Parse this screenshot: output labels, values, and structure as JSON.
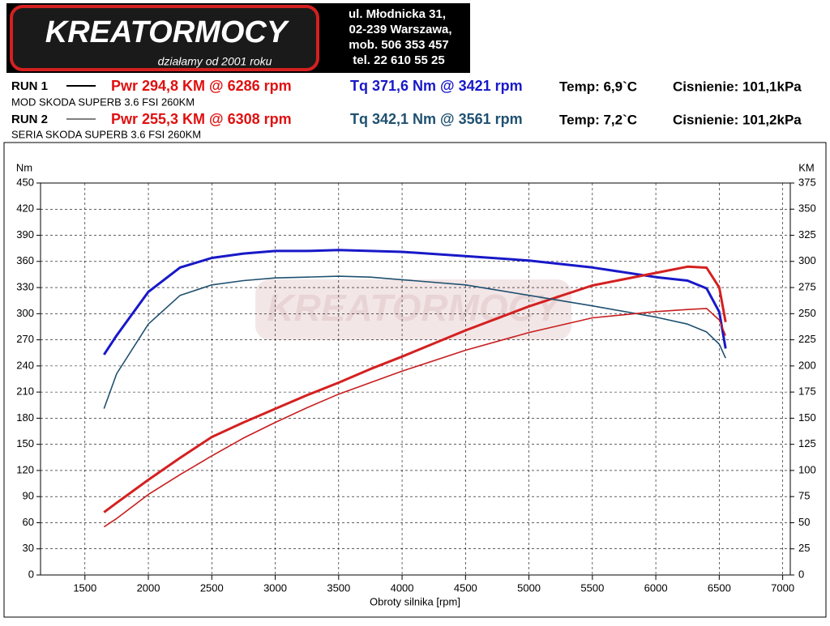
{
  "header": {
    "logo": "KREATORMOCY",
    "slogan": "działamy od 2001 roku",
    "address": [
      "ul. Młodnicka 31,",
      "02-239  Warszawa,",
      "mob.  506 353 457",
      "tel.  22 610 55 25"
    ]
  },
  "runs": [
    {
      "label": "RUN 1",
      "pwr": "Pwr  294,8 KM @ 6286 rpm",
      "tq": "Tq 371,6 Nm @ 3421 rpm",
      "temp": "Temp: 6,9`C",
      "pressure": "Cisnienie: 101,1kPa",
      "desc": "MOD SKODA SUPERB 3.6 FSI 260KM"
    },
    {
      "label": "RUN 2",
      "pwr": "Pwr  255,3 KM @ 6308 rpm",
      "tq": "Tq 342,1 Nm @ 3561 rpm",
      "temp": "Temp: 7,2`C",
      "pressure": "Cisnienie: 101,2kPa",
      "desc": "SERIA SKODA SUPERB 3.6 FSI 260KM"
    }
  ],
  "chart_data": {
    "type": "line",
    "watermark": "KREATORMOCY",
    "ylabel": "Nm",
    "y2label": "KM",
    "xlabel": "Obroty silnika [rpm]",
    "x": [
      1650,
      1750,
      2000,
      2250,
      2500,
      2750,
      3000,
      3250,
      3500,
      3750,
      4000,
      4500,
      5000,
      5500,
      6000,
      6250,
      6400,
      6500,
      6550
    ],
    "series": [
      {
        "color": "#1818c8",
        "values": [
          253,
          275,
          325,
          353,
          364,
          369,
          372,
          372,
          373,
          372,
          371,
          366,
          361,
          353,
          342,
          338,
          329,
          302,
          260
        ]
      },
      {
        "color": "#d42020",
        "axis": "y2",
        "values": [
          60,
          69,
          91,
          112,
          132,
          146,
          159,
          172,
          184,
          197,
          209,
          234,
          257,
          277,
          289,
          295,
          294,
          275,
          242
        ]
      },
      {
        "color": "#1f5070",
        "values": [
          191,
          231,
          288,
          321,
          333,
          338,
          341,
          342,
          343,
          342,
          339,
          333,
          321,
          309,
          296,
          288,
          279,
          265,
          249
        ]
      },
      {
        "color": "#c81e1e",
        "axis": "y2",
        "values": [
          46,
          54,
          77,
          96,
          114,
          131,
          146,
          160,
          173,
          184,
          195,
          215,
          232,
          246,
          252,
          254,
          255,
          244,
          229
        ]
      }
    ],
    "xlim": [
      1150,
      7060
    ],
    "xticks": [
      1500,
      2000,
      2500,
      3000,
      3500,
      4000,
      4500,
      5000,
      5500,
      6000,
      6500,
      7000
    ],
    "ylim": [
      0,
      450
    ],
    "yticks": [
      0,
      30,
      60,
      90,
      120,
      150,
      180,
      210,
      240,
      270,
      300,
      330,
      360,
      390,
      420,
      450
    ],
    "y2lim": [
      0,
      375
    ],
    "y2ticks": [
      0,
      25,
      50,
      75,
      100,
      125,
      150,
      175,
      200,
      225,
      250,
      275,
      300,
      325,
      350,
      375
    ],
    "grid": true
  }
}
